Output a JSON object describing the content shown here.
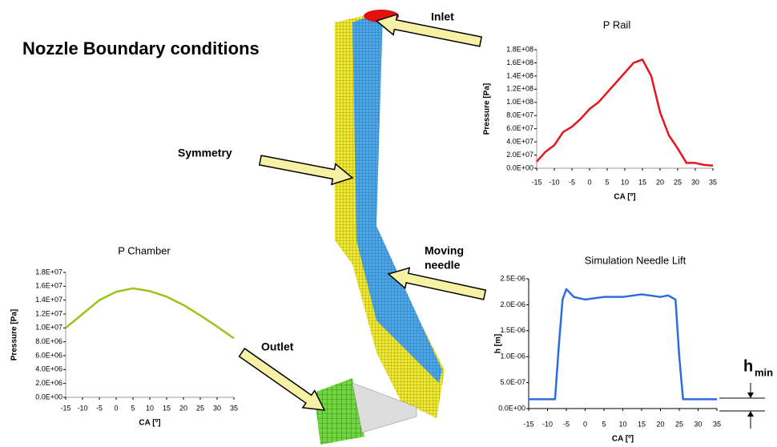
{
  "title": "Nozzle Boundary conditions",
  "labels": {
    "inlet": "Inlet",
    "symmetry": "Symmetry",
    "moving_needle": [
      "Moving",
      "needle"
    ],
    "outlet": "Outlet",
    "hmin": {
      "main": "h",
      "sub": "min"
    }
  },
  "chart_data": [
    {
      "type": "line",
      "title": "P Rail",
      "x_label": "CA [º]",
      "y_label": "Pressure [Pa]",
      "color": "#e8141c",
      "x": [
        -15,
        -12.5,
        -10,
        -7.5,
        -5,
        -2.5,
        0,
        2.5,
        5,
        7.5,
        10,
        12.5,
        15,
        17.5,
        20,
        22.5,
        25,
        27.5,
        30,
        32.5,
        35
      ],
      "values": [
        10000000,
        25000000,
        35000000,
        55000000,
        63000000,
        75000000,
        90000000,
        100000000,
        115000000,
        130000000,
        145000000,
        160000000,
        165000000,
        140000000,
        85000000,
        50000000,
        30000000,
        8000000,
        8000000,
        5000000,
        4000000
      ],
      "xlim": [
        -15,
        35
      ],
      "xticks": [
        -15,
        -10,
        -5,
        0,
        5,
        10,
        15,
        20,
        25,
        30,
        35
      ],
      "ylim": [
        0,
        180000000
      ],
      "yticks": [
        {
          "value": 0,
          "label": "0.0E+00"
        },
        {
          "value": 20000000,
          "label": "2.0E+07"
        },
        {
          "value": 40000000,
          "label": "4.0E+07"
        },
        {
          "value": 60000000,
          "label": "6.0E+07"
        },
        {
          "value": 80000000,
          "label": "8.0E+07"
        },
        {
          "value": 100000000,
          "label": "1.0E+08"
        },
        {
          "value": 120000000,
          "label": "1.2E+08"
        },
        {
          "value": 140000000,
          "label": "1.4E+08"
        },
        {
          "value": 160000000,
          "label": "1.6E+08"
        },
        {
          "value": 180000000,
          "label": "1.8E+08"
        }
      ]
    },
    {
      "type": "line",
      "title": "P Chamber",
      "x_label": "CA [º]",
      "y_label": "Pressure [Pa]",
      "color": "#9ac31c",
      "x": [
        -15,
        -10,
        -5,
        0,
        5,
        10,
        15,
        20,
        25,
        30,
        35
      ],
      "values": [
        10000000,
        12000000,
        14000000,
        15200000,
        15700000,
        15300000,
        14500000,
        13300000,
        11800000,
        10200000,
        8500000
      ],
      "xlim": [
        -15,
        35
      ],
      "xticks": [
        -15,
        -10,
        -5,
        0,
        5,
        10,
        15,
        20,
        25,
        30,
        35
      ],
      "ylim": [
        0,
        18000000
      ],
      "yticks": [
        {
          "value": 0,
          "label": "0.0E+00"
        },
        {
          "value": 2000000,
          "label": "2.0E+06"
        },
        {
          "value": 4000000,
          "label": "4.0E+06"
        },
        {
          "value": 6000000,
          "label": "6.0E+06"
        },
        {
          "value": 8000000,
          "label": "8.0E+06"
        },
        {
          "value": 10000000,
          "label": "1.0E+07"
        },
        {
          "value": 12000000,
          "label": "1.2E+07"
        },
        {
          "value": 14000000,
          "label": "1.4E+07"
        },
        {
          "value": 16000000,
          "label": "1.6E+07"
        },
        {
          "value": 18000000,
          "label": "1.8E+07"
        }
      ]
    },
    {
      "type": "line",
      "title": "Simulation Needle Lift",
      "x_label": "CA [º]",
      "y_label": "h [m]",
      "color": "#2e6be0",
      "x": [
        -15,
        -8,
        -7,
        -6,
        -5,
        -3,
        0,
        5,
        10,
        15,
        20,
        22,
        24,
        25,
        26,
        35
      ],
      "values": [
        1.8e-07,
        1.8e-07,
        1.2e-06,
        2.1e-06,
        2.3e-06,
        2.15e-06,
        2.1e-06,
        2.15e-06,
        2.15e-06,
        2.2e-06,
        2.15e-06,
        2.18e-06,
        2.1e-06,
        1e-06,
        1.8e-07,
        1.8e-07
      ],
      "xlim": [
        -15,
        35
      ],
      "xticks": [
        -15,
        -10,
        -5,
        0,
        5,
        10,
        15,
        20,
        25,
        30,
        35
      ],
      "ylim": [
        0,
        2.5e-06
      ],
      "yticks": [
        {
          "value": 0,
          "label": "0.0E+00"
        },
        {
          "value": 5e-07,
          "label": "5.0E-07"
        },
        {
          "value": 1e-06,
          "label": "1.0E-06"
        },
        {
          "value": 1.5e-06,
          "label": "1.5E-06"
        },
        {
          "value": 2e-06,
          "label": "2.0E-06"
        },
        {
          "value": 2.5e-06,
          "label": "2.5E-06"
        }
      ]
    }
  ]
}
